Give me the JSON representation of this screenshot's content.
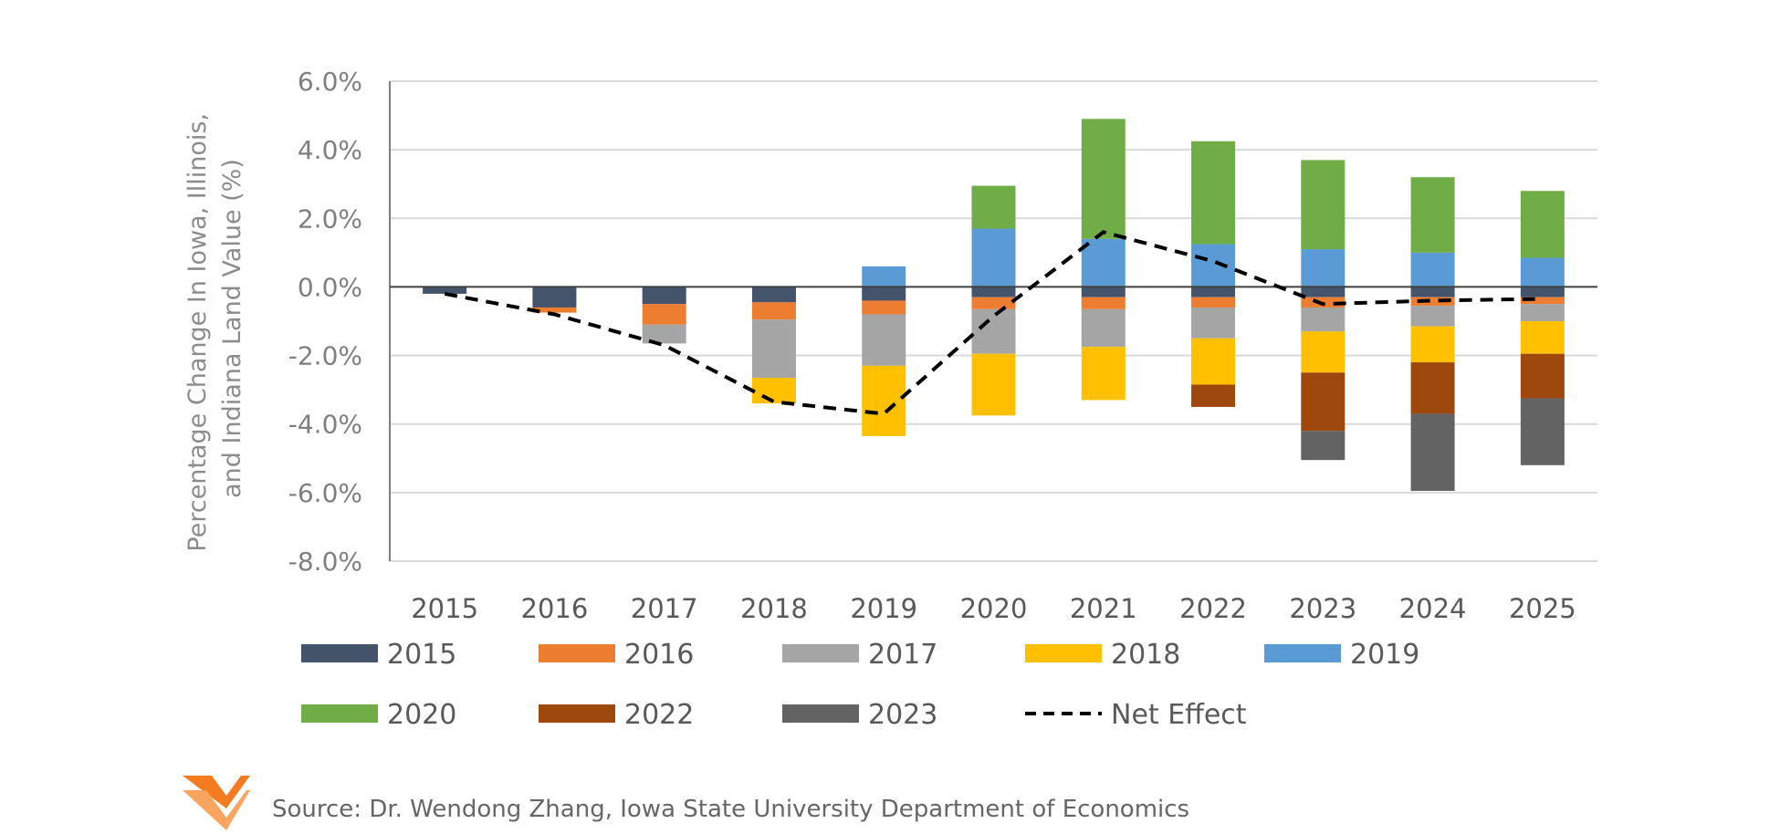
{
  "chart_data": {
    "type": "bar",
    "stacked": true,
    "title": "",
    "xlabel": "",
    "ylabel_lines": [
      "Percentage Change In Iowa, Illinois,",
      "and Indiana Land Value (%)"
    ],
    "ylim": [
      -8,
      6
    ],
    "yticks": [
      6,
      4,
      2,
      0,
      -2,
      -4,
      -6,
      -8
    ],
    "ytick_labels": [
      "6.0%",
      "4.0%",
      "2.0%",
      "0.0%",
      "-2.0%",
      "-4.0%",
      "-6.0%",
      "-8.0%"
    ],
    "grid": true,
    "legend_position": "bottom",
    "categories": [
      "2015",
      "2016",
      "2017",
      "2018",
      "2019",
      "2020",
      "2021",
      "2022",
      "2023",
      "2024",
      "2025"
    ],
    "series": [
      {
        "name": "2015",
        "color": "#44546A",
        "values": [
          -0.2,
          -0.6,
          -0.5,
          -0.45,
          -0.4,
          -0.3,
          -0.3,
          -0.3,
          -0.3,
          -0.3,
          -0.3
        ]
      },
      {
        "name": "2016",
        "color": "#ED7D31",
        "values": [
          0,
          -0.15,
          -0.6,
          -0.5,
          -0.4,
          -0.35,
          -0.35,
          -0.3,
          -0.3,
          -0.25,
          -0.2
        ]
      },
      {
        "name": "2017",
        "color": "#A5A5A5",
        "values": [
          0,
          0,
          -0.55,
          -1.7,
          -1.5,
          -1.3,
          -1.1,
          -0.9,
          -0.7,
          -0.6,
          -0.5
        ]
      },
      {
        "name": "2018",
        "color": "#FFC000",
        "values": [
          0,
          0,
          0,
          -0.75,
          -2.05,
          -1.8,
          -1.55,
          -1.35,
          -1.2,
          -1.05,
          -0.95
        ]
      },
      {
        "name": "2019",
        "color": "#5B9BD5",
        "values": [
          0,
          0,
          0,
          0,
          0.6,
          1.7,
          1.4,
          1.25,
          1.1,
          1.0,
          0.85
        ]
      },
      {
        "name": "2020",
        "color": "#70AD47",
        "values": [
          0,
          0,
          0,
          0,
          0,
          1.25,
          3.5,
          3.0,
          2.6,
          2.2,
          1.95
        ]
      },
      {
        "name": "2022",
        "color": "#9E480E",
        "values": [
          0,
          0,
          0,
          0,
          0,
          0,
          0,
          -0.65,
          -1.7,
          -1.5,
          -1.3
        ]
      },
      {
        "name": "2023",
        "color": "#636363",
        "values": [
          0,
          0,
          0,
          0,
          0,
          0,
          0,
          0,
          -0.85,
          -2.25,
          -1.95
        ]
      }
    ],
    "line": {
      "name": "Net Effect",
      "color": "#000000",
      "style": "dashed",
      "values": [
        -0.2,
        -0.8,
        -1.7,
        -3.35,
        -3.7,
        -0.85,
        1.6,
        0.75,
        -0.5,
        -0.4,
        -0.35
      ]
    }
  },
  "source": {
    "text": "Source: Dr. Wendong Zhang, Iowa State University Department of Economics",
    "logo_colors": [
      "#F47B20",
      "#F9A560"
    ]
  }
}
